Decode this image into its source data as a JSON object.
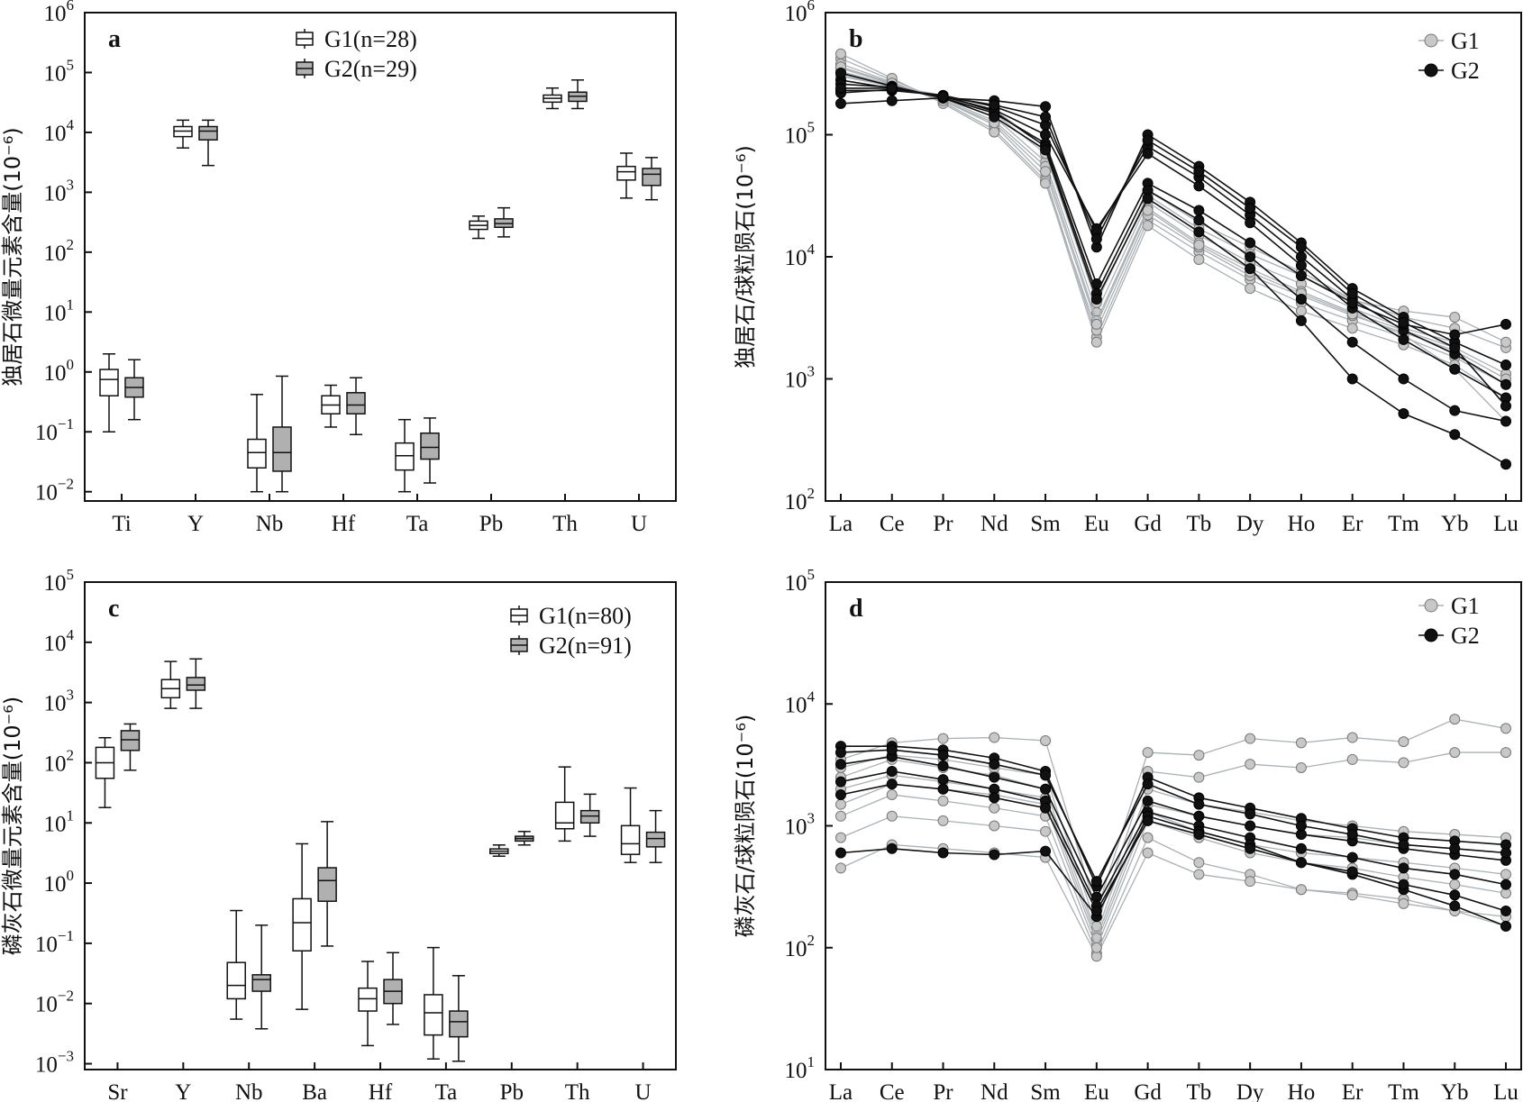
{
  "colors": {
    "g1_box_fill": "#ffffff",
    "g2_box_fill": "#b0b0b0",
    "g1_point_fill": "#c8c8c8",
    "g1_line": "#aab0b4",
    "g2_point_fill": "#111111",
    "g2_line": "#111111",
    "axis": "#111111"
  },
  "chart_data": [
    {
      "panel": "a",
      "type": "box",
      "ylabel": "独居石微量元素含量(10⁻⁶)",
      "yscale": "log",
      "ylim": [
        0.007,
        1000000
      ],
      "y_ticks": [
        {
          "exp": -2,
          "label": "10-2"
        },
        {
          "exp": -1,
          "label": "10-1"
        },
        {
          "exp": 0,
          "label": "100"
        },
        {
          "exp": 1,
          "label": "101"
        },
        {
          "exp": 2,
          "label": "102"
        },
        {
          "exp": 3,
          "label": "103"
        },
        {
          "exp": 4,
          "label": "104"
        },
        {
          "exp": 5,
          "label": "105"
        },
        {
          "exp": 6,
          "label": "106"
        }
      ],
      "categories": [
        "Ti",
        "Y",
        "Nb",
        "Hf",
        "Ta",
        "Pb",
        "Th",
        "U"
      ],
      "legend": [
        {
          "group": "G1",
          "label": "G1(n=28)"
        },
        {
          "group": "G2",
          "label": "G2(n=29)"
        }
      ],
      "series": [
        {
          "group": "G1",
          "boxes": [
            {
              "min": 0.1,
              "q1": 0.4,
              "median": 0.75,
              "q3": 1.1,
              "max": 2.0
            },
            {
              "min": 5500,
              "q1": 8500,
              "median": 10500,
              "q3": 12500,
              "max": 16000
            },
            {
              "min": 0.01,
              "q1": 0.025,
              "median": 0.045,
              "q3": 0.075,
              "max": 0.42
            },
            {
              "min": 0.12,
              "q1": 0.2,
              "median": 0.28,
              "q3": 0.4,
              "max": 0.6
            },
            {
              "min": 0.01,
              "q1": 0.023,
              "median": 0.04,
              "q3": 0.065,
              "max": 0.16
            },
            {
              "min": 170,
              "q1": 240,
              "median": 280,
              "q3": 330,
              "max": 400
            },
            {
              "min": 25000,
              "q1": 32000,
              "median": 37000,
              "q3": 42000,
              "max": 55000
            },
            {
              "min": 800,
              "q1": 1600,
              "median": 2200,
              "q3": 2700,
              "max": 4500
            }
          ]
        },
        {
          "group": "G2",
          "boxes": [
            {
              "min": 0.16,
              "q1": 0.38,
              "median": 0.55,
              "q3": 0.8,
              "max": 1.6
            },
            {
              "min": 2800,
              "q1": 7500,
              "median": 10500,
              "q3": 12500,
              "max": 16000
            },
            {
              "min": 0.01,
              "q1": 0.022,
              "median": 0.045,
              "q3": 0.12,
              "max": 0.85
            },
            {
              "min": 0.09,
              "q1": 0.2,
              "median": 0.28,
              "q3": 0.45,
              "max": 0.8
            },
            {
              "min": 0.014,
              "q1": 0.035,
              "median": 0.055,
              "q3": 0.095,
              "max": 0.17
            },
            {
              "min": 180,
              "q1": 260,
              "median": 300,
              "q3": 360,
              "max": 550
            },
            {
              "min": 25000,
              "q1": 33000,
              "median": 40000,
              "q3": 47000,
              "max": 75000
            },
            {
              "min": 750,
              "q1": 1300,
              "median": 2000,
              "q3": 2500,
              "max": 3800
            }
          ]
        }
      ]
    },
    {
      "panel": "b",
      "type": "line",
      "ylabel": "独居石/球粒陨石(10⁻⁶)",
      "yscale": "log",
      "ylim": [
        100,
        1000000
      ],
      "y_ticks": [
        {
          "exp": 2,
          "label": "102"
        },
        {
          "exp": 3,
          "label": "103"
        },
        {
          "exp": 4,
          "label": "104"
        },
        {
          "exp": 5,
          "label": "105"
        },
        {
          "exp": 6,
          "label": "106"
        }
      ],
      "categories": [
        "La",
        "Ce",
        "Pr",
        "Nd",
        "Sm",
        "Eu",
        "Gd",
        "Tb",
        "Dy",
        "Ho",
        "Er",
        "Tm",
        "Yb",
        "Lu"
      ],
      "legend": [
        {
          "group": "G1",
          "label": "G1"
        },
        {
          "group": "G2",
          "label": "G2"
        }
      ],
      "series": [
        {
          "group": "G1",
          "values": [
            350000,
            260000,
            200000,
            140000,
            60000,
            3500,
            28000,
            15000,
            9000,
            6000,
            3800,
            2600,
            2000,
            1300
          ]
        },
        {
          "group": "G1",
          "values": [
            420000,
            280000,
            190000,
            120000,
            45000,
            2200,
            20000,
            11000,
            6500,
            4200,
            3000,
            2200,
            1500,
            900
          ]
        },
        {
          "group": "G1",
          "values": [
            300000,
            250000,
            210000,
            160000,
            80000,
            5000,
            35000,
            19000,
            12000,
            7500,
            4500,
            3200,
            2600,
            1800
          ]
        },
        {
          "group": "G1",
          "values": [
            380000,
            270000,
            185000,
            110000,
            42000,
            2000,
            18000,
            9500,
            5500,
            3600,
            2600,
            1900,
            1300,
            700
          ]
        },
        {
          "group": "G1",
          "values": [
            330000,
            255000,
            195000,
            130000,
            55000,
            3000,
            25000,
            13000,
            8000,
            5200,
            3500,
            2500,
            1800,
            1100
          ]
        },
        {
          "group": "G1",
          "values": [
            460000,
            290000,
            180000,
            105000,
            40000,
            2500,
            22000,
            12000,
            7000,
            4800,
            3300,
            2400,
            1700,
            1000
          ]
        },
        {
          "group": "G1",
          "values": [
            310000,
            245000,
            205000,
            150000,
            70000,
            4200,
            32000,
            17000,
            10500,
            7000,
            4400,
            3600,
            3200,
            2000
          ]
        },
        {
          "group": "G1",
          "values": [
            360000,
            265000,
            190000,
            125000,
            50000,
            2800,
            24000,
            12500,
            7500,
            5000,
            3400,
            2300,
            1200,
            450
          ]
        },
        {
          "group": "G2",
          "values": [
            180000,
            190000,
            200000,
            190000,
            170000,
            12000,
            100000,
            55000,
            28000,
            13000,
            5500,
            3200,
            2000,
            1300
          ]
        },
        {
          "group": "G2",
          "values": [
            230000,
            230000,
            210000,
            170000,
            120000,
            16000,
            80000,
            45000,
            22000,
            10000,
            4500,
            2500,
            1600,
            900
          ]
        },
        {
          "group": "G2",
          "values": [
            280000,
            240000,
            205000,
            160000,
            100000,
            17000,
            70000,
            38000,
            19000,
            8500,
            3800,
            2100,
            1200,
            700
          ]
        },
        {
          "group": "G2",
          "values": [
            320000,
            250000,
            200000,
            150000,
            85000,
            6000,
            40000,
            24000,
            13000,
            7000,
            4200,
            2800,
            2300,
            2800
          ]
        },
        {
          "group": "G2",
          "values": [
            220000,
            235000,
            210000,
            155000,
            80000,
            5000,
            35000,
            20000,
            10000,
            4500,
            2000,
            1000,
            550,
            450
          ]
        },
        {
          "group": "G2",
          "values": [
            260000,
            245000,
            200000,
            140000,
            75000,
            4500,
            30000,
            16000,
            8000,
            3000,
            1000,
            520,
            350,
            200
          ]
        },
        {
          "group": "G2",
          "values": [
            240000,
            240000,
            205000,
            175000,
            140000,
            14000,
            90000,
            50000,
            25000,
            12000,
            5000,
            2900,
            1800,
            600
          ]
        }
      ]
    },
    {
      "panel": "c",
      "type": "box",
      "ylabel": "磷灰石微量元素含量(10⁻⁶)",
      "yscale": "log",
      "ylim": [
        0.0008,
        100000
      ],
      "y_ticks": [
        {
          "exp": -3,
          "label": "10-3"
        },
        {
          "exp": -2,
          "label": "10-2"
        },
        {
          "exp": -1,
          "label": "10-1"
        },
        {
          "exp": 0,
          "label": "100"
        },
        {
          "exp": 1,
          "label": "101"
        },
        {
          "exp": 2,
          "label": "102"
        },
        {
          "exp": 3,
          "label": "103"
        },
        {
          "exp": 4,
          "label": "104"
        },
        {
          "exp": 5,
          "label": "105"
        }
      ],
      "categories": [
        "Sr",
        "Y",
        "Nb",
        "Ba",
        "Hf",
        "Ta",
        "Pb",
        "Th",
        "U"
      ],
      "legend": [
        {
          "group": "G1",
          "label": "G1(n=80)"
        },
        {
          "group": "G2",
          "label": "G2(n=91)"
        }
      ],
      "series": [
        {
          "group": "G1",
          "boxes": [
            {
              "min": 18,
              "q1": 55,
              "median": 100,
              "q3": 180,
              "max": 260
            },
            {
              "min": 800,
              "q1": 1200,
              "median": 1700,
              "q3": 2400,
              "max": 4800
            },
            {
              "min": 0.0055,
              "q1": 0.012,
              "median": 0.02,
              "q3": 0.048,
              "max": 0.35
            },
            {
              "min": 0.008,
              "q1": 0.075,
              "median": 0.22,
              "q3": 0.55,
              "max": 4.5
            },
            {
              "min": 0.002,
              "q1": 0.0075,
              "median": 0.012,
              "q3": 0.018,
              "max": 0.05
            },
            {
              "min": 0.0012,
              "q1": 0.003,
              "median": 0.007,
              "q3": 0.014,
              "max": 0.085
            },
            {
              "min": 2.8,
              "q1": 3.1,
              "median": 3.4,
              "q3": 3.7,
              "max": 4.3
            },
            {
              "min": 5,
              "q1": 8,
              "median": 10,
              "q3": 22,
              "max": 85
            },
            {
              "min": 2.2,
              "q1": 3,
              "median": 4.5,
              "q3": 9,
              "max": 38
            }
          ]
        },
        {
          "group": "G2",
          "boxes": [
            {
              "min": 75,
              "q1": 160,
              "median": 240,
              "q3": 340,
              "max": 440
            },
            {
              "min": 800,
              "q1": 1600,
              "median": 1950,
              "q3": 2600,
              "max": 5300
            },
            {
              "min": 0.0038,
              "q1": 0.016,
              "median": 0.025,
              "q3": 0.03,
              "max": 0.2
            },
            {
              "min": 0.09,
              "q1": 0.5,
              "median": 1.1,
              "q3": 1.8,
              "max": 10.5
            },
            {
              "min": 0.0045,
              "q1": 0.01,
              "median": 0.016,
              "q3": 0.025,
              "max": 0.07
            },
            {
              "min": 0.0011,
              "q1": 0.0028,
              "median": 0.005,
              "q3": 0.0075,
              "max": 0.029
            },
            {
              "min": 4.3,
              "q1": 5,
              "median": 5.5,
              "q3": 6,
              "max": 7.2
            },
            {
              "min": 6,
              "q1": 10,
              "median": 13,
              "q3": 16,
              "max": 30
            },
            {
              "min": 2.2,
              "q1": 4,
              "median": 5.5,
              "q3": 7,
              "max": 16
            }
          ]
        }
      ]
    },
    {
      "panel": "d",
      "type": "line",
      "ylabel": "磷灰石/球粒陨石(10⁻⁶)",
      "yscale": "log",
      "ylim": [
        10,
        100000
      ],
      "y_ticks": [
        {
          "exp": 1,
          "label": "101"
        },
        {
          "exp": 2,
          "label": "102"
        },
        {
          "exp": 3,
          "label": "103"
        },
        {
          "exp": 4,
          "label": "104"
        },
        {
          "exp": 5,
          "label": "105"
        }
      ],
      "categories": [
        "La",
        "Ce",
        "Pr",
        "Nd",
        "Sm",
        "Eu",
        "Gd",
        "Tb",
        "Dy",
        "Ho",
        "Er",
        "Tm",
        "Yb",
        "Lu"
      ],
      "legend": [
        {
          "group": "G1",
          "label": "G1"
        },
        {
          "group": "G2",
          "label": "G2"
        }
      ],
      "series": [
        {
          "group": "G1",
          "values": [
            2500,
            3500,
            3000,
            2600,
            2000,
            130,
            2000,
            1500,
            1300,
            1100,
            1000,
            900,
            850,
            800
          ]
        },
        {
          "group": "G1",
          "values": [
            3500,
            4800,
            5200,
            5300,
            5000,
            200,
            4000,
            3800,
            5200,
            4800,
            5300,
            4900,
            7500,
            6300
          ]
        },
        {
          "group": "G1",
          "values": [
            1500,
            2200,
            2000,
            1800,
            1500,
            110,
            1300,
            900,
            700,
            600,
            550,
            500,
            450,
            400
          ]
        },
        {
          "group": "G1",
          "values": [
            800,
            1200,
            1100,
            1000,
            900,
            90,
            800,
            500,
            400,
            300,
            280,
            250,
            200,
            180
          ]
        },
        {
          "group": "G1",
          "values": [
            3000,
            3800,
            3500,
            3000,
            2600,
            150,
            2800,
            2500,
            3200,
            3000,
            3500,
            3300,
            4000,
            4000
          ]
        },
        {
          "group": "G1",
          "values": [
            2000,
            2600,
            2300,
            2000,
            1700,
            120,
            1500,
            1200,
            1000,
            850,
            800,
            700,
            650,
            600
          ]
        },
        {
          "group": "G1",
          "values": [
            450,
            700,
            650,
            600,
            550,
            85,
            600,
            400,
            350,
            300,
            270,
            230,
            200,
            150
          ]
        },
        {
          "group": "G1",
          "values": [
            1200,
            1800,
            1600,
            1400,
            1200,
            100,
            1100,
            800,
            600,
            500,
            450,
            380,
            330,
            280
          ]
        },
        {
          "group": "G2",
          "values": [
            4500,
            4500,
            4200,
            3600,
            2800,
            320,
            2500,
            1700,
            1400,
            1150,
            950,
            800,
            750,
            700
          ]
        },
        {
          "group": "G2",
          "values": [
            3200,
            3700,
            3100,
            2500,
            2000,
            260,
            1600,
            1200,
            1000,
            850,
            750,
            650,
            580,
            520
          ]
        },
        {
          "group": "G2",
          "values": [
            2300,
            2800,
            2400,
            2000,
            1600,
            220,
            1300,
            1000,
            800,
            650,
            550,
            450,
            400,
            330
          ]
        },
        {
          "group": "G2",
          "values": [
            600,
            650,
            600,
            580,
            620,
            180,
            1200,
            900,
            700,
            500,
            400,
            300,
            220,
            150
          ]
        },
        {
          "group": "G2",
          "values": [
            1800,
            2200,
            2000,
            1700,
            1400,
            200,
            1100,
            850,
            650,
            500,
            420,
            330,
            270,
            200
          ]
        },
        {
          "group": "G2",
          "values": [
            4000,
            4200,
            3800,
            3200,
            2600,
            350,
            2200,
            1500,
            1250,
            1000,
            850,
            700,
            650,
            600
          ]
        }
      ]
    }
  ]
}
